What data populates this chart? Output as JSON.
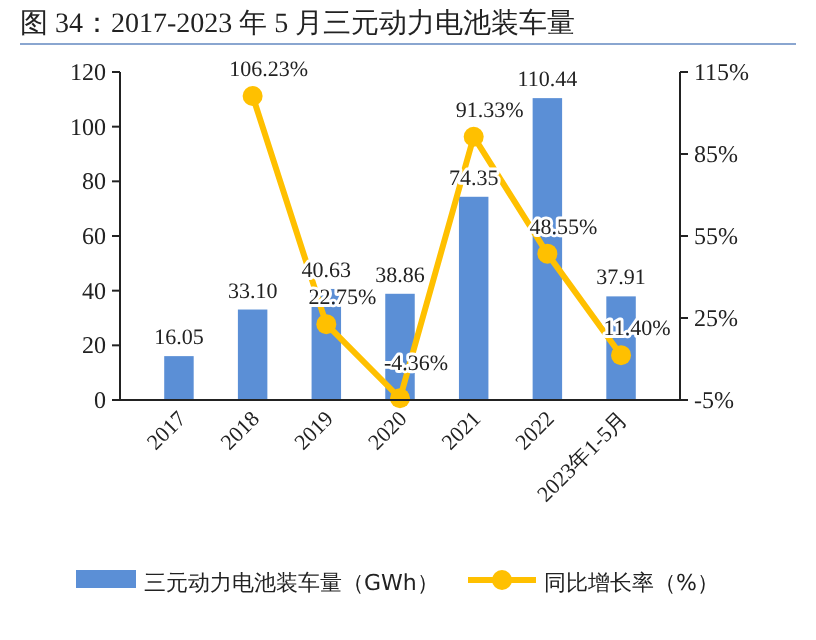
{
  "chart_data": {
    "type": "bar",
    "title": "图 34：2017-2023 年 5 月三元动力电池装车量",
    "categories": [
      "2017",
      "2018",
      "2019",
      "2020",
      "2021",
      "2022",
      "2023年1-5月"
    ],
    "series": [
      {
        "name": "三元动力电池装车量（GWh）",
        "color": "#5b8fd6",
        "values": [
          16.05,
          33.1,
          40.63,
          38.86,
          74.35,
          110.44,
          37.91
        ],
        "value_labels": [
          "16.05",
          "33.10",
          "40.63",
          "38.86",
          "74.35",
          "110.44",
          "37.91"
        ]
      },
      {
        "name": "同比增长率（%）",
        "type": "line",
        "axis": "y2",
        "color": "#ffc000",
        "marker": "circle",
        "values": [
          null,
          106.23,
          22.75,
          -4.36,
          91.33,
          48.55,
          11.4
        ],
        "value_labels": [
          null,
          "106.23%",
          "22.75%",
          "-4.36%",
          "91.33%",
          "48.55%",
          "11.40%"
        ]
      }
    ],
    "ylim": [
      0,
      120
    ],
    "yticks": [
      0,
      20,
      40,
      60,
      80,
      100,
      120
    ],
    "y2lim": [
      -5,
      115
    ],
    "y2ticks": [
      {
        "value": -5,
        "label": "-5%"
      },
      {
        "value": 25,
        "label": "25%"
      },
      {
        "value": 55,
        "label": "55%"
      },
      {
        "value": 85,
        "label": "85%"
      },
      {
        "value": 115,
        "label": "115%"
      }
    ],
    "legend": "bottom",
    "grid": false
  }
}
